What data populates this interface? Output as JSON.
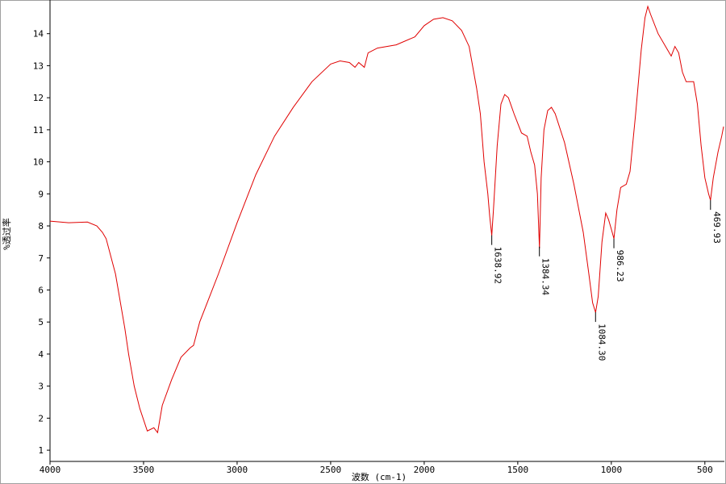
{
  "chart_data": {
    "type": "line",
    "x_label": "波数 (cm-1)",
    "y_label": "%透过率",
    "color": "#e00000",
    "x": [
      4000,
      3900,
      3800,
      3750,
      3720,
      3700,
      3650,
      3600,
      3580,
      3550,
      3520,
      3480,
      3445,
      3425,
      3400,
      3350,
      3300,
      3250,
      3233,
      3200,
      3100,
      3000,
      2900,
      2800,
      2700,
      2600,
      2500,
      2450,
      2400,
      2370,
      2350,
      2320,
      2300,
      2250,
      2150,
      2050,
      2000,
      1950,
      1900,
      1850,
      1800,
      1760,
      1720,
      1700,
      1680,
      1660,
      1650,
      1639,
      1630,
      1610,
      1590,
      1570,
      1550,
      1520,
      1500,
      1480,
      1450,
      1430,
      1410,
      1395,
      1384,
      1375,
      1360,
      1340,
      1320,
      1300,
      1250,
      1200,
      1150,
      1120,
      1100,
      1084,
      1070,
      1050,
      1030,
      1015,
      1000,
      986,
      970,
      950,
      920,
      900,
      870,
      840,
      820,
      805,
      790,
      750,
      700,
      680,
      660,
      640,
      620,
      600,
      560,
      540,
      520,
      500,
      480,
      470,
      455,
      430,
      410,
      400
    ],
    "values": [
      8.15,
      8.1,
      8.12,
      8.0,
      7.8,
      7.6,
      6.5,
      4.8,
      4.0,
      3.0,
      2.3,
      1.6,
      1.7,
      1.55,
      2.4,
      3.2,
      3.9,
      4.2,
      4.27,
      5.0,
      6.5,
      8.1,
      9.6,
      10.8,
      11.7,
      12.5,
      13.05,
      13.15,
      13.1,
      12.95,
      13.1,
      12.95,
      13.4,
      13.55,
      13.65,
      13.9,
      14.25,
      14.45,
      14.5,
      14.4,
      14.1,
      13.6,
      12.3,
      11.5,
      10.0,
      9.0,
      8.3,
      7.7,
      8.5,
      10.5,
      11.8,
      12.1,
      12.0,
      11.5,
      11.2,
      10.9,
      10.8,
      10.3,
      9.9,
      9.0,
      7.3,
      9.5,
      11.0,
      11.6,
      11.7,
      11.5,
      10.6,
      9.3,
      7.8,
      6.5,
      5.6,
      5.3,
      5.8,
      7.5,
      8.4,
      8.2,
      7.9,
      7.6,
      8.5,
      9.2,
      9.3,
      9.7,
      11.5,
      13.5,
      14.5,
      14.85,
      14.6,
      14.0,
      13.5,
      13.3,
      13.6,
      13.4,
      12.8,
      12.5,
      12.5,
      11.8,
      10.5,
      9.5,
      9.0,
      8.8,
      9.5,
      10.3,
      10.8,
      11.1
    ],
    "xlim": [
      4000,
      400
    ],
    "ylim": [
      0.65,
      15.05
    ],
    "xticks": [
      4000,
      3500,
      3000,
      2500,
      2000,
      1500,
      1000,
      500
    ],
    "yticks": [
      1,
      2,
      3,
      4,
      5,
      6,
      7,
      8,
      9,
      10,
      11,
      12,
      13,
      14
    ],
    "peak_labels": [
      {
        "value": 1638.92,
        "label": "1638.92"
      },
      {
        "value": 1384.34,
        "label": "1384.34"
      },
      {
        "value": 1084.3,
        "label": "1084.30"
      },
      {
        "value": 986.23,
        "label": "986.23"
      },
      {
        "value": 469.93,
        "label": "469.93"
      }
    ]
  }
}
